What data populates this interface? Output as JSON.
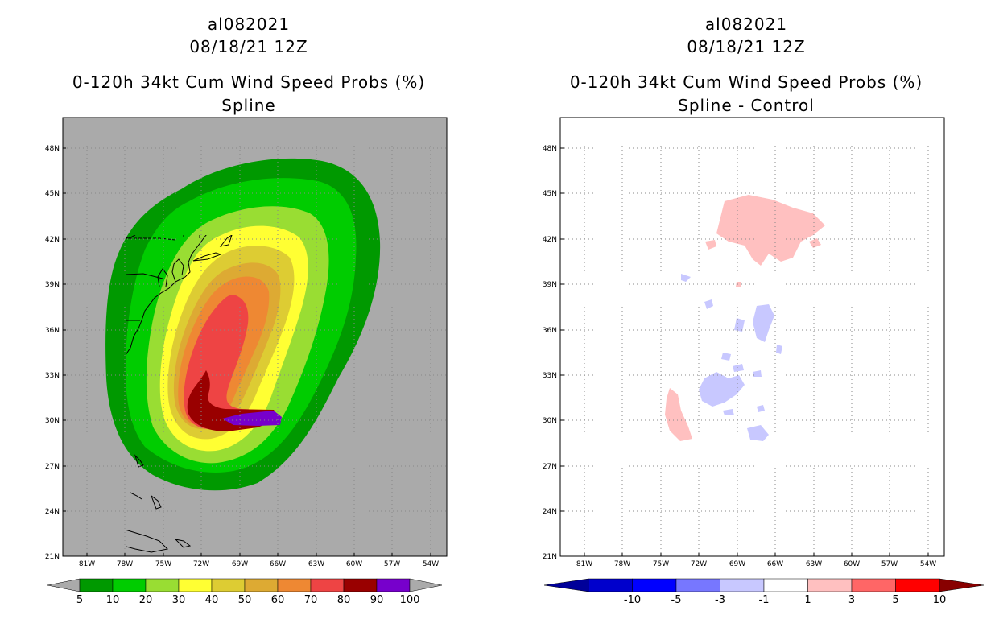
{
  "panels": [
    {
      "storm_id": "al082021",
      "datetime": "08/18/21 12Z",
      "product_title": "0-120h 34kt Cum Wind Speed Probs (%)",
      "subtitle": "Spline",
      "background_color": "#aaaaaa"
    },
    {
      "storm_id": "al082021",
      "datetime": "08/18/21 12Z",
      "product_title": "0-120h 34kt Cum Wind Speed Probs (%)",
      "subtitle": "Spline - Control",
      "background_color": "#ffffff"
    }
  ],
  "map_axes": {
    "lat_labels": [
      "48N",
      "45N",
      "42N",
      "39N",
      "36N",
      "33N",
      "30N",
      "27N",
      "24N",
      "21N"
    ],
    "lon_labels": [
      "81W",
      "78W",
      "75W",
      "72W",
      "69W",
      "66W",
      "63W",
      "60W",
      "57W",
      "54W"
    ],
    "lat_range": [
      21,
      50
    ],
    "lon_range": [
      -83,
      -52
    ]
  },
  "colorbar_prob": {
    "labels": [
      "5",
      "10",
      "20",
      "30",
      "40",
      "50",
      "60",
      "70",
      "80",
      "90",
      "100"
    ],
    "colors": [
      "#009900",
      "#00cc00",
      "#99dd33",
      "#ffff33",
      "#ddcc33",
      "#ddaa33",
      "#ee8833",
      "#ee4444",
      "#990000",
      "#7700cc"
    ],
    "below_color": "#aaaaaa",
    "above_color": "#aaaaaa"
  },
  "colorbar_diff": {
    "labels": [
      "-10",
      "-5",
      "-3",
      "-1",
      "1",
      "3",
      "5",
      "10"
    ],
    "colors": [
      "#0000cc",
      "#0000ff",
      "#7777ff",
      "#c8c8ff",
      "#ffffff",
      "#ffc0c0",
      "#ff6666",
      "#ff0000"
    ],
    "below_color": "#000099",
    "above_color": "#880000"
  }
}
